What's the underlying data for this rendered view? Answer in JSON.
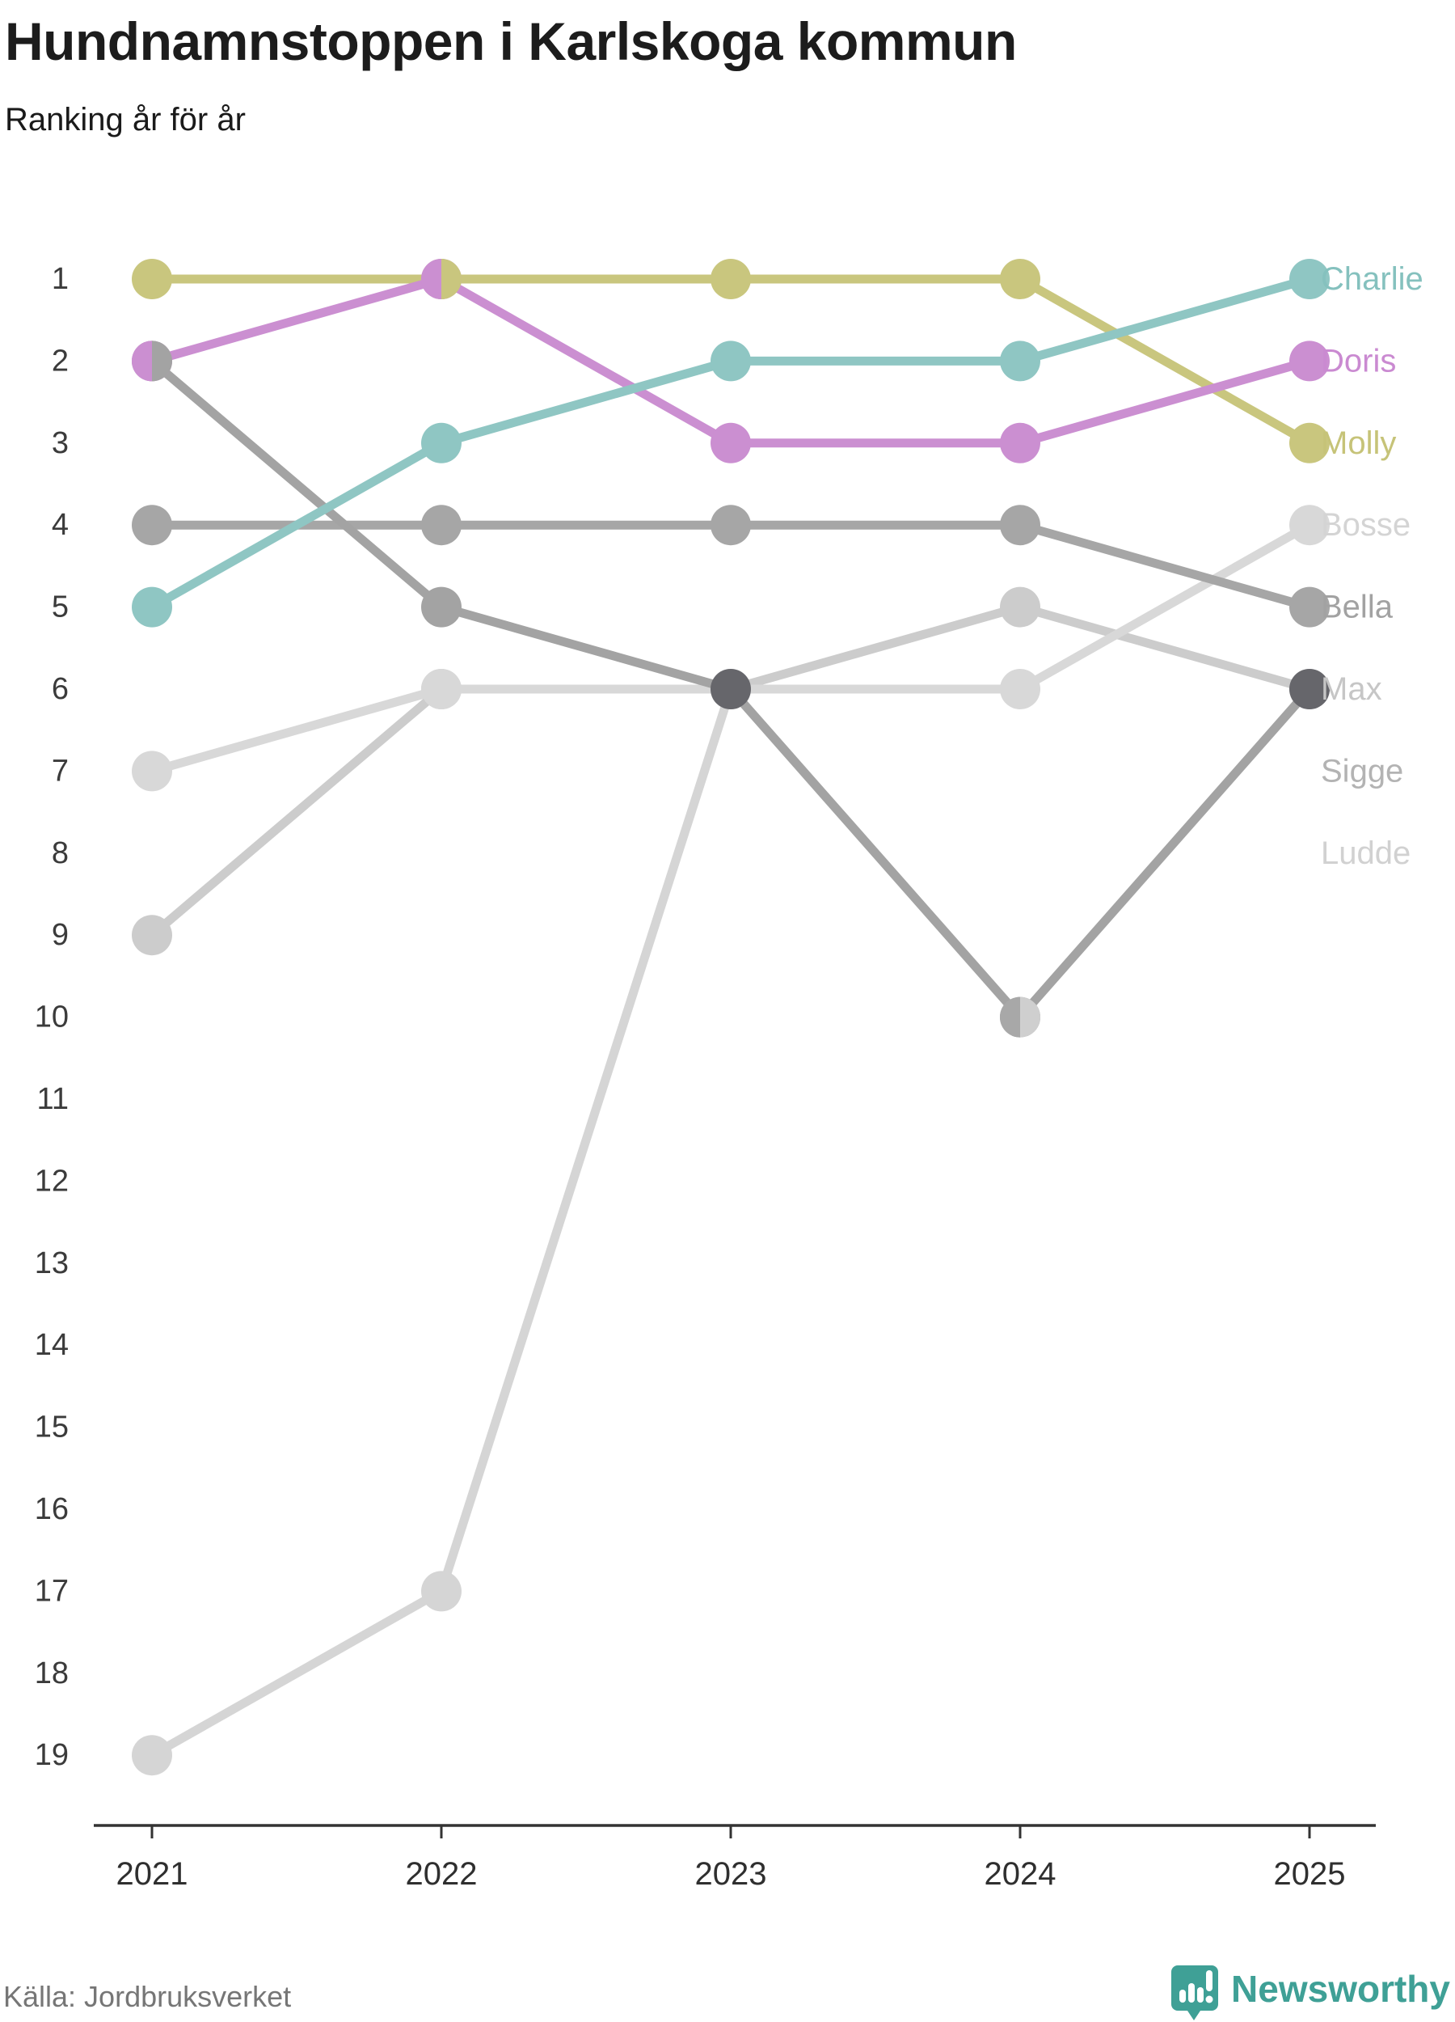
{
  "header": {
    "title": "Hundnamnstoppen i Karlskoga kommun",
    "subtitle": "Ranking år för år"
  },
  "footer": {
    "source": "Källa: Jordbruksverket",
    "brand": "Newsworthy",
    "brand_color": "#3fa096"
  },
  "chart_data": {
    "type": "line",
    "variant": "bump-ranking",
    "title": "Hundnamnstoppen i Karlskoga kommun",
    "subtitle": "Ranking år för år",
    "xlabel": "",
    "ylabel": "",
    "grid": false,
    "y_inverted": true,
    "ylim": [
      1,
      19
    ],
    "x": [
      2021,
      2022,
      2023,
      2024,
      2025
    ],
    "y_ticks": [
      1,
      2,
      3,
      4,
      5,
      6,
      7,
      8,
      9,
      10,
      11,
      12,
      13,
      14,
      15,
      16,
      17,
      18,
      19
    ],
    "axis_color": "#333333",
    "tick_label_color": "#3b3b3b",
    "series": [
      {
        "name": "Ludde",
        "color": "#d5d5d5",
        "label_color": "#d1d1d1",
        "ranks": [
          19,
          17,
          6,
          10,
          null
        ],
        "label_row": 8
      },
      {
        "name": "Sigge",
        "color": "#cccccc",
        "label_color": "#b3b3b3",
        "ranks": [
          9,
          6,
          6,
          5,
          6
        ],
        "label_row": 7
      },
      {
        "name": "Bosse",
        "color": "#d8d8d8",
        "label_color": "#d4d4d4",
        "ranks": [
          7,
          6,
          6,
          6,
          4
        ],
        "label_row": 4
      },
      {
        "name": "Bella",
        "color": "#a6a6a6",
        "label_color": "#a2a2a2",
        "ranks": [
          4,
          4,
          4,
          4,
          5
        ],
        "label_row": 5
      },
      {
        "name": "Max",
        "color": "#a3a3a3",
        "label_color": "#c6c6c6",
        "ranks": [
          2,
          5,
          6,
          10,
          6
        ],
        "label_row": 6,
        "dot_colors": [
          null,
          "#a3a3a3",
          "#66666b",
          null,
          "#66666b"
        ]
      },
      {
        "name": "Molly",
        "color": "#c9c67e",
        "label_color": "#c6c378",
        "ranks": [
          1,
          1,
          1,
          1,
          3
        ],
        "label_row": 3
      },
      {
        "name": "Doris",
        "color": "#cb8fd1",
        "label_color": "#ca8ad1",
        "ranks": [
          2,
          1,
          3,
          3,
          2
        ],
        "label_row": 2
      },
      {
        "name": "Charlie",
        "color": "#8fc6c3",
        "label_color": "#85c1be",
        "ranks": [
          5,
          3,
          2,
          2,
          1
        ],
        "label_row": 1
      }
    ],
    "tie_dots": [
      {
        "year": 2021,
        "rank": 2,
        "names": "Doris / Max",
        "left_color": "#cb8fd1",
        "right_color": "#a3a3a3"
      },
      {
        "year": 2022,
        "rank": 1,
        "names": "Doris / Molly",
        "left_color": "#cb8fd1",
        "right_color": "#c9c67e"
      },
      {
        "year": 2024,
        "rank": 10,
        "names": "Max / Ludde",
        "left_color": "#a8a8a8",
        "right_color": "#cfcfcf"
      }
    ]
  }
}
